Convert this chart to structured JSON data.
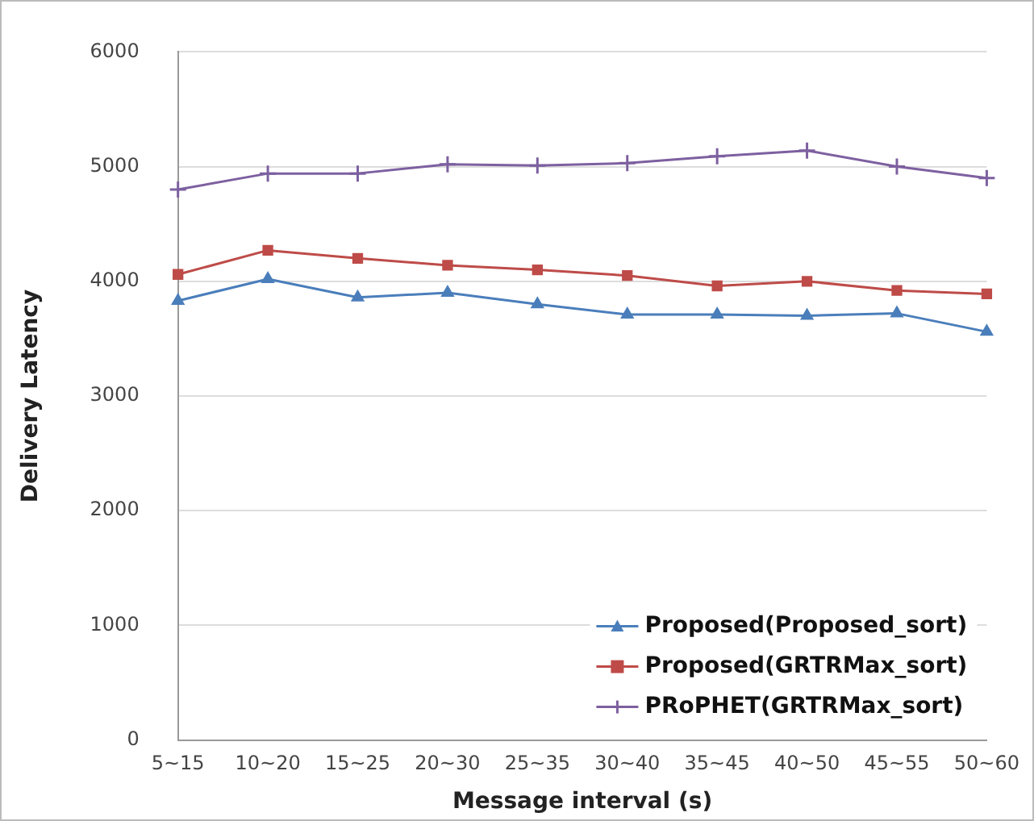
{
  "chart_data": {
    "type": "line",
    "xlabel": "Message interval (s)",
    "ylabel": "Delivery Latency",
    "categories": [
      "5~15",
      "10~20",
      "15~25",
      "20~30",
      "25~35",
      "30~40",
      "35~45",
      "40~50",
      "45~55",
      "50~60"
    ],
    "series": [
      {
        "name": "Proposed(Proposed_sort)",
        "color": "#4a7ebb",
        "marker": "triangle",
        "values": [
          3830,
          4020,
          3860,
          3900,
          3800,
          3710,
          3710,
          3700,
          3720,
          3560
        ]
      },
      {
        "name": "Proposed(GRTRMax_sort)",
        "color": "#be4b48",
        "marker": "square",
        "values": [
          4060,
          4270,
          4200,
          4140,
          4100,
          4050,
          3960,
          4000,
          3920,
          3890
        ]
      },
      {
        "name": "PRoPHET(GRTRMax_sort)",
        "color": "#7d60a0",
        "marker": "cross",
        "values": [
          4800,
          4940,
          4940,
          5020,
          5010,
          5030,
          5090,
          5140,
          5000,
          4900
        ]
      }
    ],
    "ylim": [
      0,
      6000
    ],
    "yticks": [
      0,
      1000,
      2000,
      3000,
      4000,
      5000,
      6000
    ],
    "grid": "y",
    "legend": "bottom right",
    "line_style": "solid"
  }
}
